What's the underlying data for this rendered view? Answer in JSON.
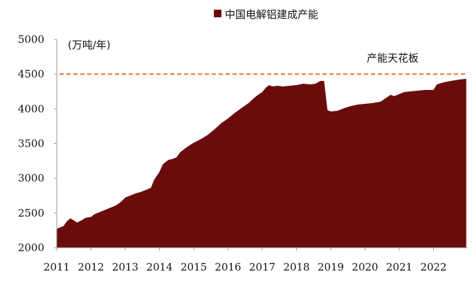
{
  "chart_data": {
    "type": "area",
    "legend": [
      {
        "label": "中国电解铝建成产能",
        "color": "#6b0c0c"
      }
    ],
    "unit_label": "(万吨/年)",
    "ylim": [
      2000,
      5000
    ],
    "yticks": [
      2000,
      2500,
      3000,
      3500,
      4000,
      4500,
      5000
    ],
    "xlim": [
      2011,
      2023.0
    ],
    "xticks": [
      2011,
      2012,
      2013,
      2014,
      2015,
      2016,
      2017,
      2018,
      2019,
      2020,
      2021,
      2022
    ],
    "ceiling": {
      "label": "产能天花板",
      "value": 4500,
      "color": "#e8762b"
    },
    "series": [
      {
        "color": "#6b0c0c",
        "x": [
          2011.0,
          2011.2,
          2011.3,
          2011.4,
          2011.5,
          2011.6,
          2011.75,
          2011.85,
          2012.0,
          2012.1,
          2012.25,
          2012.4,
          2012.55,
          2012.7,
          2012.8,
          2012.9,
          2013.0,
          2013.15,
          2013.3,
          2013.45,
          2013.55,
          2013.65,
          2013.75,
          2013.85,
          2014.0,
          2014.1,
          2014.25,
          2014.4,
          2014.5,
          2014.6,
          2014.75,
          2014.9,
          2015.0,
          2015.2,
          2015.4,
          2015.6,
          2015.8,
          2016.0,
          2016.2,
          2016.45,
          2016.6,
          2016.75,
          2016.85,
          2017.0,
          2017.1,
          2017.2,
          2017.3,
          2017.45,
          2017.6,
          2017.8,
          2018.0,
          2018.2,
          2018.4,
          2018.55,
          2018.7,
          2018.8,
          2018.9,
          2019.0,
          2019.2,
          2019.4,
          2019.6,
          2019.8,
          2020.0,
          2020.2,
          2020.45,
          2020.6,
          2020.75,
          2020.85,
          2021.0,
          2021.15,
          2021.35,
          2021.55,
          2021.75,
          2021.9,
          2022.0,
          2022.1,
          2022.3,
          2022.5,
          2022.75,
          2022.95
        ],
        "values": [
          2270,
          2310,
          2380,
          2420,
          2390,
          2360,
          2400,
          2430,
          2440,
          2480,
          2510,
          2540,
          2570,
          2600,
          2630,
          2670,
          2720,
          2750,
          2780,
          2800,
          2820,
          2840,
          2860,
          2980,
          3090,
          3200,
          3260,
          3280,
          3300,
          3370,
          3430,
          3480,
          3510,
          3560,
          3620,
          3700,
          3790,
          3860,
          3940,
          4030,
          4080,
          4150,
          4190,
          4240,
          4300,
          4340,
          4320,
          4330,
          4320,
          4330,
          4340,
          4360,
          4350,
          4360,
          4400,
          4400,
          3980,
          3960,
          3970,
          4010,
          4040,
          4060,
          4070,
          4080,
          4100,
          4150,
          4200,
          4180,
          4210,
          4240,
          4250,
          4260,
          4270,
          4270,
          4270,
          4350,
          4380,
          4400,
          4420,
          4430
        ]
      }
    ]
  }
}
